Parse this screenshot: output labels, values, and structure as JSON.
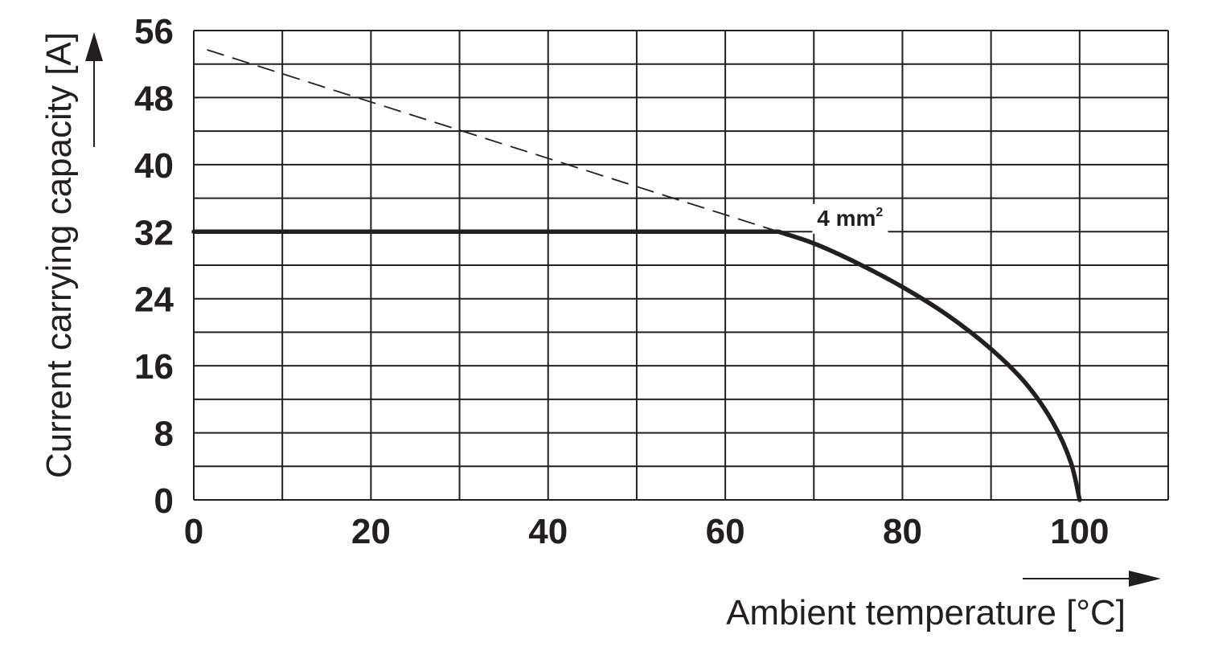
{
  "chart_data": {
    "type": "line",
    "title": "",
    "xlabel": "Ambient temperature [°C]",
    "ylabel": "Current carrying capacity [A]",
    "xlim": [
      0,
      110
    ],
    "ylim": [
      0,
      56
    ],
    "x_ticks": [
      0,
      20,
      40,
      60,
      80,
      100
    ],
    "y_ticks": [
      0,
      8,
      16,
      24,
      32,
      40,
      48,
      56
    ],
    "x_grid_step": 10,
    "y_grid_step": 4,
    "grid": true,
    "legend": "none",
    "series": [
      {
        "style": "solid",
        "x": [
          0,
          66,
          70,
          75,
          80,
          85,
          90,
          94,
          97,
          99,
          100
        ],
        "y": [
          32,
          32,
          30.6,
          28.2,
          25.4,
          22.1,
          18,
          13.8,
          9.2,
          4.5,
          0
        ]
      },
      {
        "style": "dashed",
        "x": [
          1.5,
          66
        ],
        "y": [
          53.7,
          32
        ]
      }
    ],
    "annotations": [
      {
        "text": "4 mm",
        "superscript": "2",
        "x": 70,
        "y": 33
      }
    ]
  }
}
